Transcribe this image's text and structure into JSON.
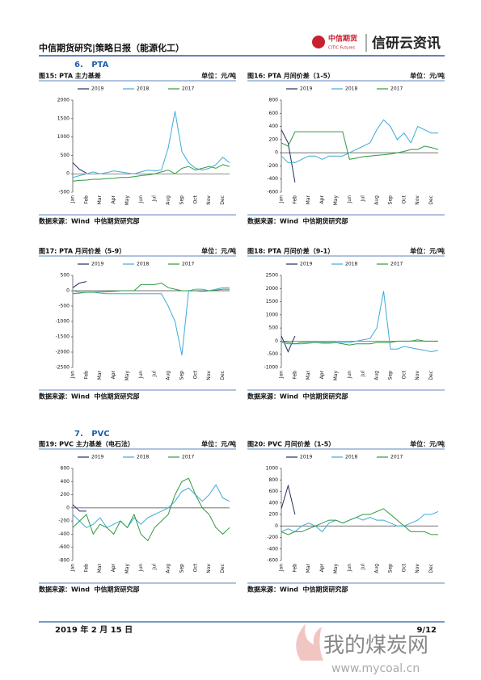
{
  "header": {
    "title": "中信期货研究|策略日报（能源化工）",
    "logo": "中信期货",
    "logo_en": "CITIC Futures",
    "brand": "信研云资讯"
  },
  "sections": [
    "6.   PTA",
    "7.   PVC"
  ],
  "chart_data": [
    {
      "type": "line",
      "title": "图15: PTA 主力基差",
      "unit": "单位：元/吨",
      "source": "数据来源：Wind  中信期货研究部",
      "categories": [
        "Jan",
        null,
        "Feb",
        null,
        "Mar",
        null,
        "Apr",
        null,
        "May",
        null,
        "Jun",
        null,
        "Jul",
        null,
        "Aug",
        null,
        "Sep",
        null,
        "Oct",
        null,
        "Nov",
        null,
        "Dec",
        null
      ],
      "ylim": [
        -500,
        2000
      ],
      "yticks": [
        -500,
        0,
        500,
        1000,
        1500,
        2000
      ],
      "series": [
        {
          "name": "2019",
          "color": "#1f2d5c",
          "values": [
            300,
            120,
            20,
            null,
            null,
            null,
            null,
            null,
            null,
            null,
            null,
            null,
            null,
            null,
            null,
            null,
            null,
            null,
            null,
            null,
            null,
            null,
            null,
            null
          ]
        },
        {
          "name": "2018",
          "color": "#3fa9d8",
          "values": [
            -100,
            -50,
            0,
            50,
            0,
            30,
            80,
            50,
            20,
            0,
            50,
            100,
            80,
            100,
            700,
            1700,
            600,
            300,
            150,
            100,
            150,
            250,
            450,
            300
          ]
        },
        {
          "name": "2017",
          "color": "#2e9a3e",
          "values": [
            -200,
            -180,
            -170,
            -150,
            -150,
            -130,
            -120,
            -100,
            -100,
            -80,
            -50,
            -30,
            0,
            50,
            100,
            0,
            150,
            200,
            100,
            150,
            200,
            150,
            250,
            200
          ]
        }
      ]
    },
    {
      "type": "line",
      "title": "图16: PTA 月间价差（1-5）",
      "unit": "单位：元/吨",
      "source": "数据来源：Wind  中信期货研究部",
      "categories": [
        "Jan",
        null,
        "Feb",
        null,
        "Mar",
        null,
        "Apr",
        null,
        "May",
        null,
        "Jun",
        null,
        "Jul",
        null,
        "Aug",
        null,
        "Sep",
        null,
        "Oct",
        null,
        "Nov",
        null,
        "Dec",
        null
      ],
      "ylim": [
        -600,
        800
      ],
      "yticks": [
        -600,
        -400,
        -200,
        0,
        200,
        400,
        600,
        800
      ],
      "series": [
        {
          "name": "2019",
          "color": "#1f2d5c",
          "values": [
            350,
            150,
            -450,
            null,
            null,
            null,
            null,
            null,
            null,
            null,
            null,
            null,
            null,
            null,
            null,
            null,
            null,
            null,
            null,
            null,
            null,
            null,
            null,
            null
          ]
        },
        {
          "name": "2018",
          "color": "#3fa9d8",
          "values": [
            -50,
            -150,
            -150,
            -100,
            -50,
            -50,
            -100,
            -50,
            -50,
            -50,
            0,
            50,
            100,
            150,
            350,
            500,
            400,
            200,
            300,
            150,
            400,
            350,
            300,
            300
          ]
        },
        {
          "name": "2017",
          "color": "#2e9a3e",
          "values": [
            150,
            100,
            320,
            320,
            320,
            320,
            320,
            320,
            320,
            320,
            -100,
            -80,
            -60,
            -50,
            -40,
            -30,
            -20,
            0,
            20,
            50,
            50,
            100,
            80,
            50
          ]
        }
      ]
    },
    {
      "type": "line",
      "title": "图17: PTA 月间价差（5-9）",
      "unit": "单位：元/吨",
      "source": "数据来源：Wind  中信期货研究部",
      "categories": [
        "Jan",
        null,
        "Feb",
        null,
        "Mar",
        null,
        "Apr",
        null,
        "May",
        null,
        "Jun",
        null,
        "Jul",
        null,
        "Aug",
        null,
        "Sep",
        null,
        "Oct",
        null,
        "Nov",
        null,
        "Dec",
        null
      ],
      "ylim": [
        -2500,
        500
      ],
      "yticks": [
        -2500,
        -2000,
        -1500,
        -1000,
        -500,
        0,
        500
      ],
      "series": [
        {
          "name": "2019",
          "color": "#1f2d5c",
          "values": [
            100,
            250,
            300,
            null,
            null,
            null,
            null,
            null,
            null,
            null,
            null,
            null,
            null,
            null,
            null,
            null,
            null,
            null,
            null,
            null,
            null,
            null,
            null,
            null
          ]
        },
        {
          "name": "2018",
          "color": "#3fa9d8",
          "values": [
            0,
            -50,
            -50,
            -50,
            -80,
            -100,
            -100,
            -100,
            -100,
            -100,
            -100,
            -100,
            -100,
            -100,
            -500,
            -1000,
            -2100,
            0,
            50,
            50,
            0,
            50,
            100,
            100
          ]
        },
        {
          "name": "2017",
          "color": "#2e9a3e",
          "values": [
            -100,
            -80,
            -50,
            -50,
            -40,
            -30,
            -20,
            0,
            0,
            0,
            200,
            200,
            200,
            250,
            100,
            50,
            0,
            0,
            0,
            -20,
            0,
            20,
            50,
            50
          ]
        }
      ]
    },
    {
      "type": "line",
      "title": "图18: PTA 月间价差（9-1）",
      "unit": "单位：元/吨",
      "source": "数据来源：Wind  中信期货研究部",
      "categories": [
        "Jan",
        null,
        "Feb",
        null,
        "Mar",
        null,
        "Apr",
        null,
        "May",
        null,
        "Jun",
        null,
        "Jul",
        null,
        "Aug",
        null,
        "Sep",
        null,
        "Oct",
        null,
        "Nov",
        null,
        "Dec",
        null
      ],
      "ylim": [
        -1000,
        2500
      ],
      "yticks": [
        -1000,
        -500,
        0,
        500,
        1000,
        1500,
        2000,
        2500
      ],
      "series": [
        {
          "name": "2019",
          "color": "#1f2d5c",
          "values": [
            200,
            -400,
            200,
            null,
            null,
            null,
            null,
            null,
            null,
            null,
            null,
            null,
            null,
            null,
            null,
            null,
            null,
            null,
            null,
            null,
            null,
            null,
            null,
            null
          ]
        },
        {
          "name": "2018",
          "color": "#3fa9d8",
          "values": [
            -50,
            -100,
            -100,
            -100,
            -80,
            -50,
            -80,
            -80,
            -60,
            -50,
            -50,
            0,
            50,
            100,
            500,
            1900,
            -300,
            -300,
            -200,
            -250,
            -300,
            -350,
            -400,
            -350
          ]
        },
        {
          "name": "2017",
          "color": "#2e9a3e",
          "values": [
            0,
            -50,
            -100,
            -50,
            -50,
            -50,
            -50,
            -50,
            -50,
            -100,
            -150,
            -100,
            -100,
            -100,
            -50,
            -50,
            -50,
            0,
            0,
            0,
            50,
            0,
            0,
            0
          ]
        }
      ]
    },
    {
      "type": "line",
      "title": "图19: PVC 主力基差（电石法）",
      "unit": "单位：元/吨",
      "source": "数据来源：Wind  中信期货研究部",
      "categories": [
        "Jan",
        null,
        "Feb",
        null,
        "Mar",
        null,
        "Apr",
        null,
        "May",
        null,
        "Jun",
        null,
        "Jul",
        null,
        "Aug",
        null,
        "Sep",
        null,
        "Oct",
        null,
        "Nov",
        null,
        "Dec",
        null
      ],
      "ylim": [
        -800,
        600
      ],
      "yticks": [
        -800,
        -600,
        -400,
        -200,
        0,
        200,
        400,
        600
      ],
      "series": [
        {
          "name": "2019",
          "color": "#1f2d5c",
          "values": [
            50,
            -50,
            -50,
            null,
            null,
            null,
            null,
            null,
            null,
            null,
            null,
            null,
            null,
            null,
            null,
            null,
            null,
            null,
            null,
            null,
            null,
            null,
            null,
            null
          ]
        },
        {
          "name": "2018",
          "color": "#3fa9d8",
          "values": [
            -100,
            -200,
            -300,
            -250,
            -150,
            -300,
            -250,
            -200,
            -300,
            -150,
            -250,
            -150,
            -100,
            -50,
            0,
            100,
            250,
            300,
            200,
            100,
            200,
            350,
            150,
            100
          ]
        },
        {
          "name": "2017",
          "color": "#2e9a3e",
          "values": [
            -300,
            -200,
            -100,
            -400,
            -250,
            -300,
            -400,
            -200,
            -300,
            -100,
            -400,
            -500,
            -300,
            -200,
            -100,
            200,
            400,
            450,
            200,
            0,
            -100,
            -300,
            -400,
            -300
          ]
        }
      ]
    },
    {
      "type": "line",
      "title": "图20: PVC 月间价差（1-5）",
      "unit": "单位：元/吨",
      "source": "数据来源：Wind  中信期货研究部",
      "categories": [
        "Jan",
        null,
        "Feb",
        null,
        "Mar",
        null,
        "Apr",
        null,
        "May",
        null,
        "Jun",
        null,
        "Jul",
        null,
        "Aug",
        null,
        "Sep",
        null,
        "Oct",
        null,
        "Nov",
        null,
        "Dec",
        null
      ],
      "ylim": [
        -600,
        1000
      ],
      "yticks": [
        -600,
        -400,
        -200,
        0,
        200,
        400,
        600,
        800,
        1000
      ],
      "series": [
        {
          "name": "2019",
          "color": "#1f2d5c",
          "values": [
            300,
            700,
            200,
            null,
            null,
            null,
            null,
            null,
            null,
            null,
            null,
            null,
            null,
            null,
            null,
            null,
            null,
            null,
            null,
            null,
            null,
            null,
            null,
            null
          ]
        },
        {
          "name": "2018",
          "color": "#3fa9d8",
          "values": [
            -100,
            -50,
            -100,
            0,
            50,
            0,
            -100,
            50,
            100,
            50,
            100,
            150,
            100,
            150,
            100,
            100,
            50,
            0,
            0,
            50,
            100,
            200,
            200,
            250
          ]
        },
        {
          "name": "2017",
          "color": "#2e9a3e",
          "values": [
            -100,
            -150,
            -100,
            -100,
            -50,
            0,
            50,
            100,
            100,
            50,
            100,
            150,
            200,
            200,
            250,
            300,
            200,
            100,
            0,
            -100,
            -100,
            -100,
            -150,
            -150
          ]
        }
      ]
    }
  ],
  "footer": {
    "date": "2019 年 2 月 15 日",
    "page": "9/12"
  },
  "watermark": {
    "name": "我的煤炭网",
    "url": "www.mycoal.cn"
  }
}
